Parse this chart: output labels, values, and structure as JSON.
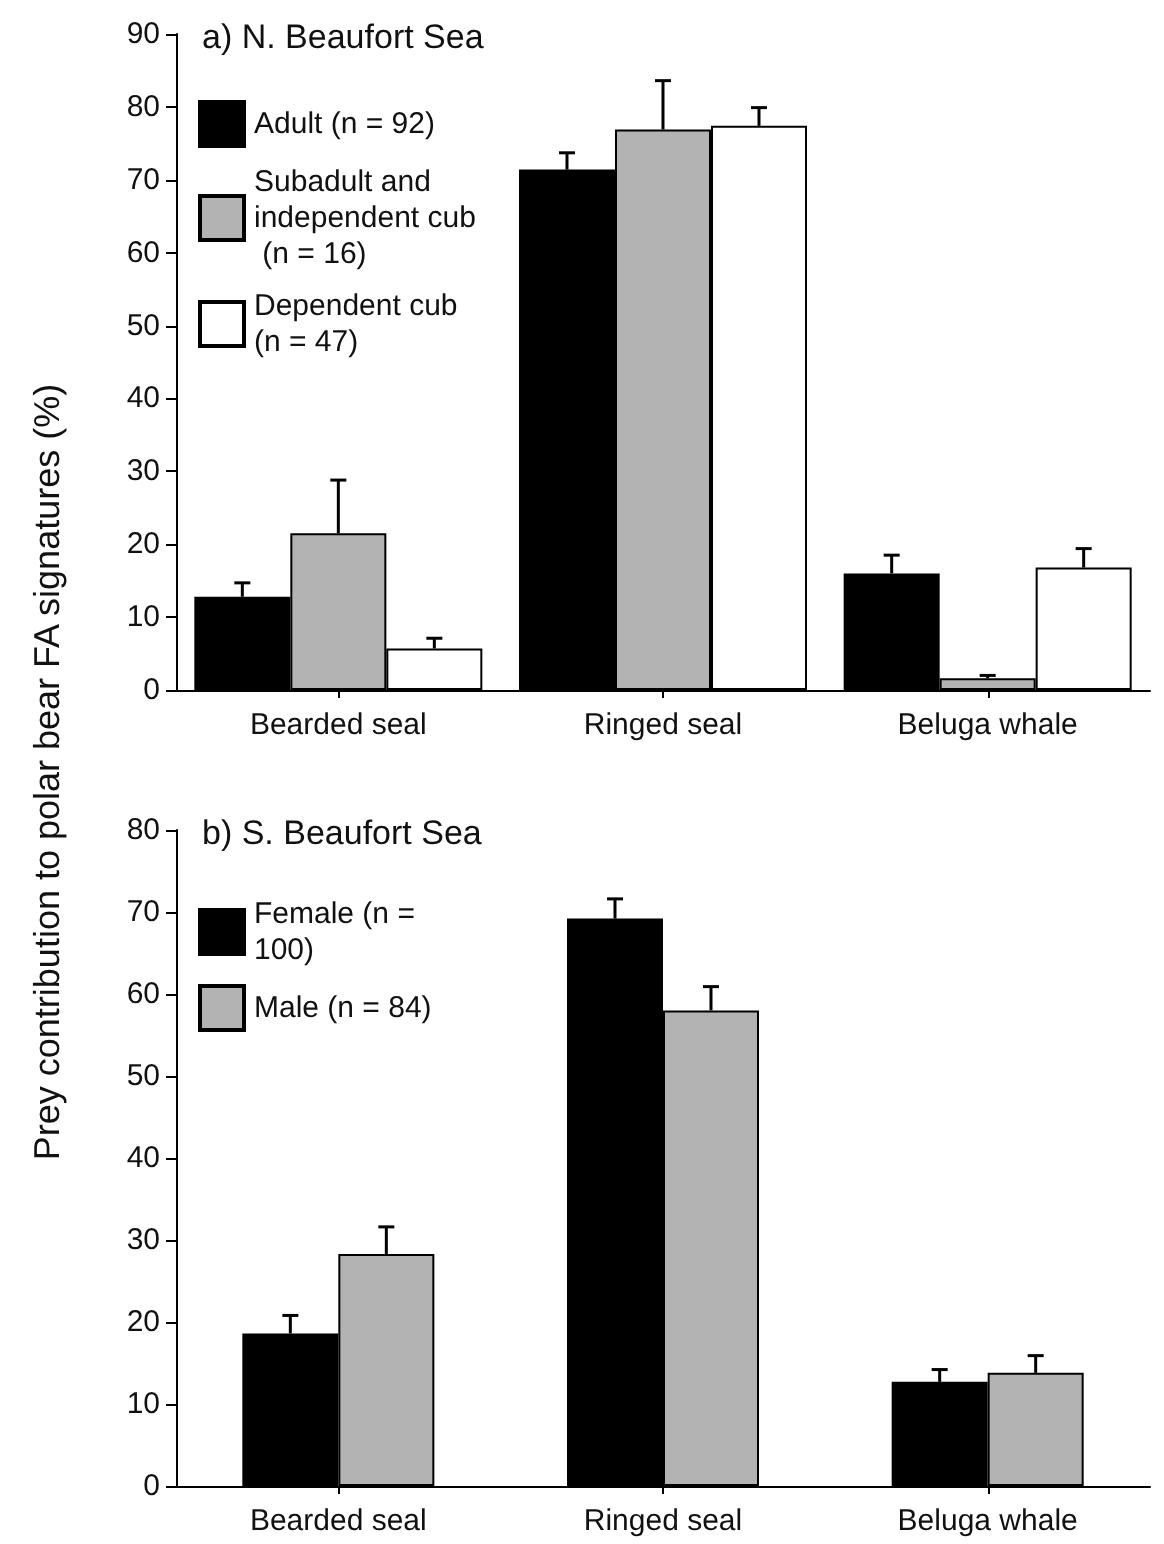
{
  "chart_data": [
    {
      "type": "bar",
      "title": "a) N. Beaufort Sea",
      "ylabel": "Prey contribution to polar bear FA signatures (%)",
      "categories": [
        "Bearded seal",
        "Ringed seal",
        "Beluga whale"
      ],
      "ylim": [
        0,
        90
      ],
      "yticks": [
        0,
        10,
        20,
        30,
        40,
        50,
        60,
        70,
        80,
        90
      ],
      "grid": false,
      "legend": "top left",
      "series": [
        {
          "name": "Adult (n = 92)",
          "color": "#000000",
          "values": [
            12.8,
            71.4,
            16.0
          ],
          "errors": [
            [
              12.8,
              14.7
            ],
            [
              71.4,
              73.7
            ],
            [
              16.0,
              18.5
            ]
          ]
        },
        {
          "name": "Subadult and independent cub (n = 16)",
          "color": "#b3b3b3",
          "values": [
            21.5,
            76.9,
            1.6
          ],
          "errors": [
            [
              21.5,
              28.8
            ],
            [
              76.9,
              83.6
            ],
            [
              1.6,
              2.0
            ]
          ]
        },
        {
          "name": "Dependent cub (n = 47)",
          "color": "#ffffff",
          "values": [
            5.7,
            77.4,
            16.8
          ],
          "errors": [
            [
              5.7,
              7.1
            ],
            [
              77.4,
              79.9
            ],
            [
              16.8,
              19.4
            ]
          ]
        }
      ]
    },
    {
      "type": "bar",
      "title": "b) S. Beaufort Sea",
      "categories": [
        "Bearded seal",
        "Ringed seal",
        "Beluga whale"
      ],
      "ylim": [
        0,
        80
      ],
      "yticks": [
        0,
        10,
        20,
        30,
        40,
        50,
        60,
        70,
        80
      ],
      "grid": false,
      "legend": "top left",
      "series": [
        {
          "name": "Female (n = 100)",
          "color": "#000000",
          "values": [
            18.6,
            69.2,
            12.7
          ],
          "errors": [
            [
              18.6,
              20.8
            ],
            [
              69.2,
              71.6
            ],
            [
              12.7,
              14.2
            ]
          ]
        },
        {
          "name": "Male (n = 84)",
          "color": "#b3b3b3",
          "values": [
            28.3,
            58.0,
            13.8
          ],
          "errors": [
            [
              28.3,
              31.6
            ],
            [
              58.0,
              60.9
            ],
            [
              13.8,
              15.9
            ]
          ]
        }
      ]
    }
  ]
}
